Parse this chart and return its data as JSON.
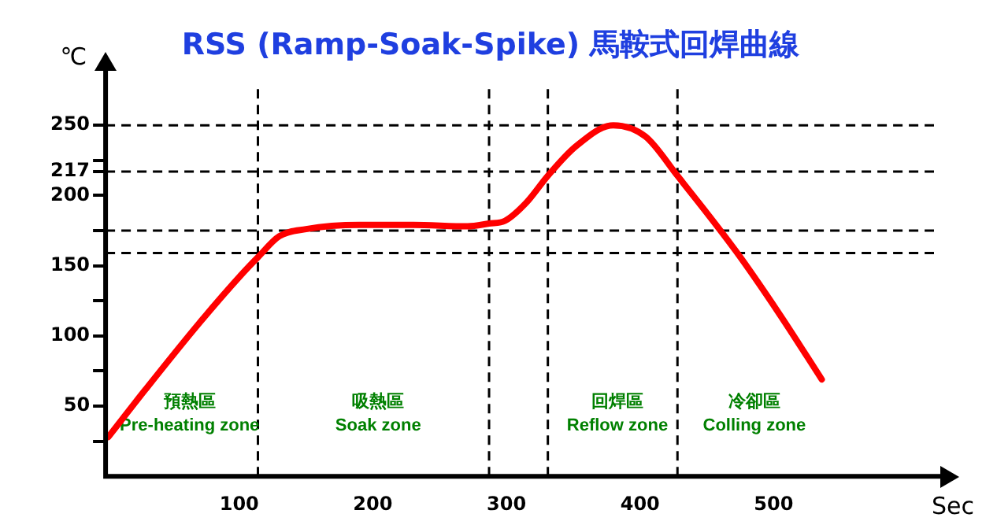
{
  "chart_data": {
    "type": "line",
    "title": "RSS (Ramp-Soak-Spike) 馬鞍式回焊曲線",
    "xlabel": "Sec",
    "ylabel": "℃",
    "x": [
      2,
      30,
      70,
      102,
      114,
      130,
      150,
      190,
      230,
      271,
      287,
      299,
      315,
      331,
      352,
      380,
      404,
      428,
      472,
      504,
      536
    ],
    "series": [
      {
        "color": "#ff0000",
        "values": [
          28,
          62,
          109,
          144,
          156,
          171,
          176,
          179,
          179,
          178,
          180,
          182,
          195,
          214,
          235,
          250,
          242,
          214,
          160,
          116,
          69
        ]
      }
    ],
    "xlim": [
      0,
      620
    ],
    "ylim": [
      0,
      280
    ],
    "xticks": [
      100,
      200,
      300,
      400,
      500
    ],
    "yticks": [
      {
        "value": 25,
        "label": null
      },
      50,
      {
        "value": 75,
        "label": null
      },
      100,
      {
        "value": 125,
        "label": null
      },
      150,
      {
        "value": 175,
        "label": null
      },
      200,
      217,
      {
        "value": 225,
        "label": null
      },
      250
    ],
    "ref_lines": [
      {
        "axis": "y",
        "value": 250,
        "line_style": "dashed",
        "color": "#000000"
      },
      {
        "axis": "y",
        "value": 217,
        "line_style": "dashed",
        "color": "#000000"
      },
      {
        "axis": "y",
        "value": 175,
        "line_style": "dashed",
        "color": "#000000"
      },
      {
        "axis": "y",
        "value": 159,
        "line_style": "dashed",
        "color": "#000000"
      },
      {
        "axis": "x",
        "value": 114,
        "line_style": "dashed",
        "color": "#000000"
      },
      {
        "axis": "x",
        "value": 287,
        "line_style": "dashed",
        "color": "#000000"
      },
      {
        "axis": "x",
        "value": 331,
        "line_style": "dashed",
        "color": "#000000"
      },
      {
        "axis": "x",
        "value": 428,
        "line_style": "dashed",
        "color": "#000000"
      }
    ],
    "annotations": [
      "預熱區\nPre-heating zone",
      "吸熱區\nSoak zone",
      "回焊區\nReflow zone",
      "冷卻區\nColling zone"
    ],
    "grid": false,
    "legend": false,
    "marker": "none",
    "line_style": "solid"
  }
}
